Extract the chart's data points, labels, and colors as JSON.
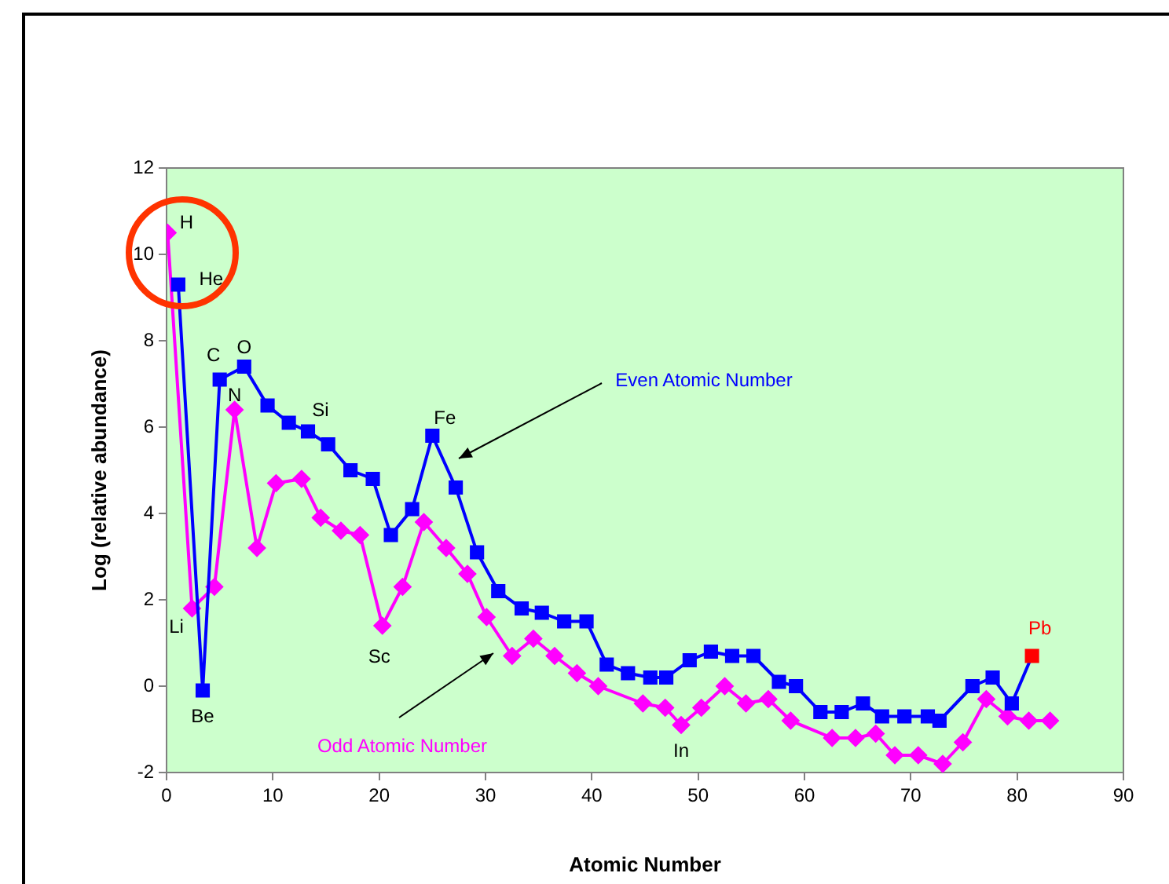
{
  "chart_data": {
    "type": "line",
    "xlabel": "Atomic Number",
    "ylabel": "Log (relative abundance)",
    "xlim": [
      0,
      90
    ],
    "xticks": [
      0,
      10,
      20,
      30,
      40,
      50,
      60,
      70,
      80,
      90
    ],
    "ylim": [
      -2,
      12
    ],
    "yticks": [
      -2,
      0,
      2,
      4,
      6,
      8,
      10,
      12
    ],
    "grid": false,
    "legend": false,
    "series": [
      {
        "name": "Even Atomic Number",
        "color": "#0000ff",
        "marker": "square",
        "x": [
          1.1,
          3.4,
          5.0,
          7.3,
          9.5,
          11.5,
          13.3,
          15.2,
          17.3,
          19.4,
          21.1,
          23.1,
          25.0,
          27.2,
          29.2,
          31.2,
          33.4,
          35.3,
          37.4,
          39.5,
          41.4,
          43.4,
          45.5,
          47.0,
          49.2,
          51.2,
          53.2,
          55.2,
          57.6,
          59.2,
          61.5,
          63.5,
          65.5,
          67.3,
          69.4,
          71.6,
          72.7,
          75.8,
          77.7,
          79.5,
          81.4
        ],
        "values": [
          9.3,
          -0.1,
          7.1,
          7.4,
          6.5,
          6.1,
          5.9,
          5.6,
          5.0,
          4.8,
          3.5,
          4.1,
          5.8,
          4.6,
          3.1,
          2.2,
          1.8,
          1.7,
          1.5,
          1.5,
          0.5,
          0.3,
          0.2,
          0.2,
          0.6,
          0.8,
          0.7,
          0.7,
          0.1,
          0.0,
          -0.6,
          -0.6,
          -0.4,
          -0.7,
          -0.7,
          -0.7,
          -0.8,
          0.0,
          0.2,
          -0.4,
          0.7
        ],
        "colors": [
          "#0000ff",
          "#0000ff",
          "#0000ff",
          "#0000ff",
          "#0000ff",
          "#0000ff",
          "#0000ff",
          "#0000ff",
          "#0000ff",
          "#0000ff",
          "#0000ff",
          "#0000ff",
          "#0000ff",
          "#0000ff",
          "#0000ff",
          "#0000ff",
          "#0000ff",
          "#0000ff",
          "#0000ff",
          "#0000ff",
          "#0000ff",
          "#0000ff",
          "#0000ff",
          "#0000ff",
          "#0000ff",
          "#0000ff",
          "#0000ff",
          "#0000ff",
          "#0000ff",
          "#0000ff",
          "#0000ff",
          "#0000ff",
          "#0000ff",
          "#0000ff",
          "#0000ff",
          "#0000ff",
          "#0000ff",
          "#0000ff",
          "#0000ff",
          "#0000ff",
          "#ff0000"
        ]
      },
      {
        "name": "Odd Atomic Number",
        "color": "#ff00ff",
        "marker": "diamond",
        "x": [
          0.1,
          2.4,
          4.5,
          6.4,
          8.5,
          10.3,
          12.7,
          14.5,
          16.4,
          18.2,
          20.3,
          22.2,
          24.2,
          26.3,
          28.3,
          30.1,
          32.5,
          34.5,
          36.5,
          38.6,
          40.6,
          44.8,
          46.9,
          48.4,
          50.3,
          52.5,
          54.5,
          56.6,
          58.7,
          62.6,
          64.8,
          66.7,
          68.5,
          70.7,
          73.0,
          74.9,
          77.1,
          79.1,
          81.1,
          83.1
        ],
        "values": [
          10.5,
          1.8,
          2.3,
          6.4,
          3.2,
          4.7,
          4.8,
          3.9,
          3.6,
          3.5,
          1.4,
          2.3,
          3.8,
          3.2,
          2.6,
          1.6,
          0.7,
          1.1,
          0.7,
          0.3,
          0.0,
          -0.4,
          -0.5,
          -0.9,
          -0.5,
          0.0,
          -0.4,
          -0.3,
          -0.8,
          -1.2,
          -1.2,
          -1.1,
          -1.6,
          -1.6,
          -1.8,
          -1.3,
          -0.3,
          -0.7,
          -0.8,
          -0.8
        ]
      }
    ],
    "annotations": [
      {
        "text": "H",
        "x": 0.1,
        "y": 10.5
      },
      {
        "text": "He",
        "x": 1.1,
        "y": 9.3
      },
      {
        "text": "Li",
        "x": 2.4,
        "y": 1.8
      },
      {
        "text": "Be",
        "x": 3.4,
        "y": -0.1
      },
      {
        "text": "C",
        "x": 5.0,
        "y": 7.1
      },
      {
        "text": "O",
        "x": 7.3,
        "y": 7.4
      },
      {
        "text": "N",
        "x": 6.4,
        "y": 6.4
      },
      {
        "text": "Si",
        "x": 13.3,
        "y": 5.9
      },
      {
        "text": "Fe",
        "x": 25.0,
        "y": 5.8
      },
      {
        "text": "Sc",
        "x": 20.3,
        "y": 1.4
      },
      {
        "text": "In",
        "x": 48.4,
        "y": -0.9
      },
      {
        "text": "Pb",
        "x": 81.4,
        "y": 0.7
      }
    ]
  }
}
